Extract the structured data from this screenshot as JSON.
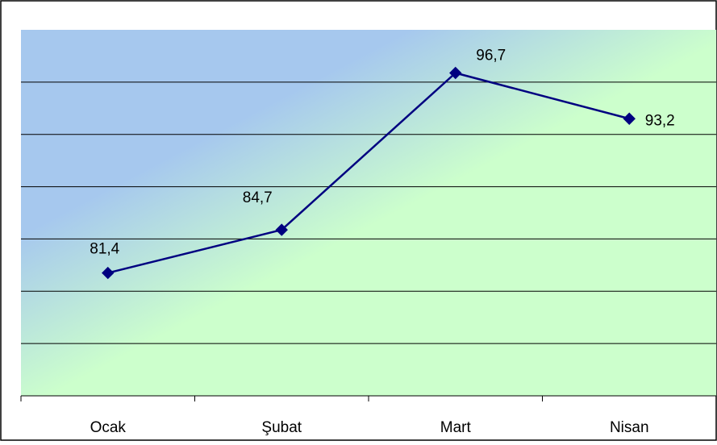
{
  "chart_data": {
    "type": "line",
    "title": "",
    "xlabel": "",
    "ylabel": "",
    "categories": [
      "Ocak",
      "Şubat",
      "Mart",
      "Nisan"
    ],
    "series": [
      {
        "values": [
          81.4,
          84.7,
          96.7,
          93.2
        ],
        "labels": [
          "81,4",
          "84,7",
          "96,7",
          "93,2"
        ],
        "color": "#000080",
        "marker": "diamond"
      }
    ],
    "ylim": [
      72,
      100
    ],
    "y_gridlines": [
      76,
      80,
      84,
      88,
      92,
      96
    ],
    "grid": true,
    "legend": "none",
    "plot_background": {
      "gradient_from": "#a6c8ee",
      "gradient_to": "#ccffcc"
    }
  }
}
